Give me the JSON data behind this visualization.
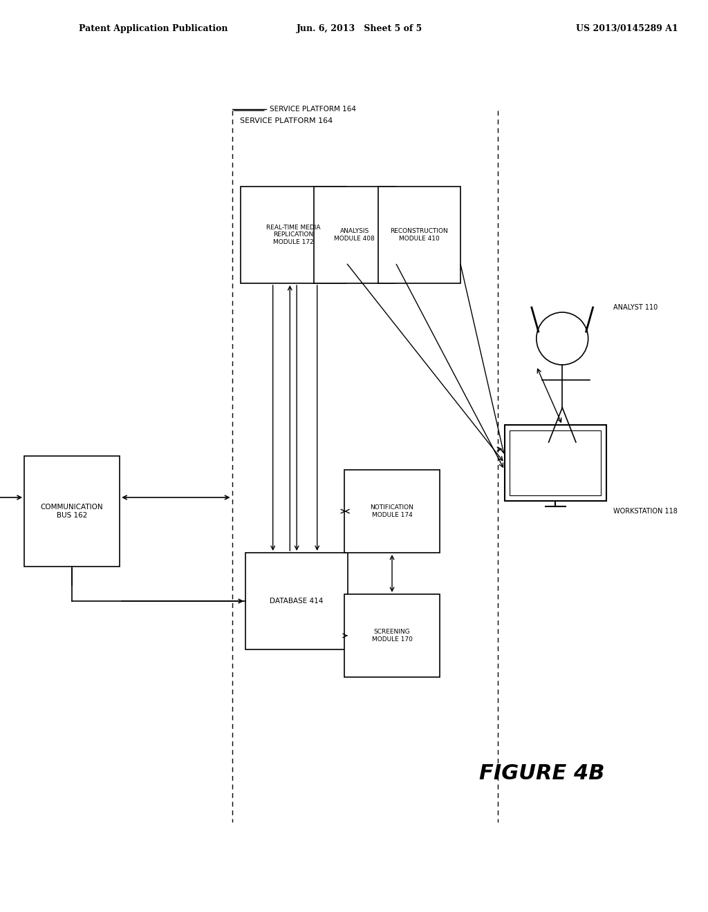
{
  "bg_color": "#ffffff",
  "header_left": "Patent Application Publication",
  "header_mid": "Jun. 6, 2013   Sheet 5 of 5",
  "header_right": "US 2013/0145289 A1",
  "figure_label": "FIGURE 4B",
  "service_platform_label": "SERVICE PLATFORM 164",
  "comm_bus_label": "COMMUNICATION\nBUS 162",
  "rtmr_label": "REAL-TIME MEDIA\nREPLICATION\nMODULE 172",
  "analysis_label": "ANALYSIS\nMODULE 408",
  "recon_label": "RECONSTRUCTION\nMODULE 410",
  "database_label": "DATABASE 414",
  "notification_label": "NOTIFICATION\nMODULE 174",
  "screening_label": "SCREENING\nMODULE 170",
  "workstation_label": "WORKSTATION 118",
  "analyst_label": "ANALYST 110"
}
